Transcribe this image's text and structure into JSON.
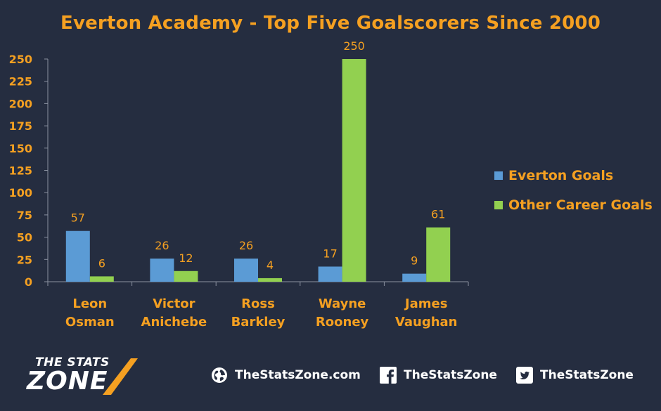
{
  "chart_data": {
    "type": "bar",
    "title": "Everton Academy - Top Five Goalscorers Since 2000",
    "categories": [
      [
        "Leon",
        "Osman"
      ],
      [
        "Victor",
        "Anichebe"
      ],
      [
        "Ross",
        "Barkley"
      ],
      [
        "Wayne",
        "Rooney"
      ],
      [
        "James",
        "Vaughan"
      ]
    ],
    "series": [
      {
        "name": "Everton Goals",
        "values": [
          57,
          26,
          26,
          17,
          9
        ],
        "color": "#5b9bd5"
      },
      {
        "name": "Other Career Goals",
        "values": [
          6,
          12,
          4,
          250,
          61
        ],
        "color": "#92d050"
      }
    ],
    "ylim": [
      0,
      250
    ],
    "yticks": [
      0,
      25,
      50,
      75,
      100,
      125,
      150,
      175,
      200,
      225,
      250
    ],
    "xlabel": "",
    "ylabel": "",
    "grid": false,
    "legend_position": "right",
    "data_labels": true
  },
  "colors": {
    "background": "#252d40",
    "accent": "#f5a021",
    "axis": "#8a91a0",
    "text_light": "#ffffff"
  },
  "footer": {
    "logo_line1": "THE STATS",
    "logo_line2": "ZONE",
    "website": {
      "icon": "globe-icon",
      "label": "TheStatsZone.com"
    },
    "facebook": {
      "icon": "facebook-icon",
      "label": "TheStatsZone"
    },
    "twitter": {
      "icon": "twitter-icon",
      "label": "TheStatsZone"
    }
  }
}
